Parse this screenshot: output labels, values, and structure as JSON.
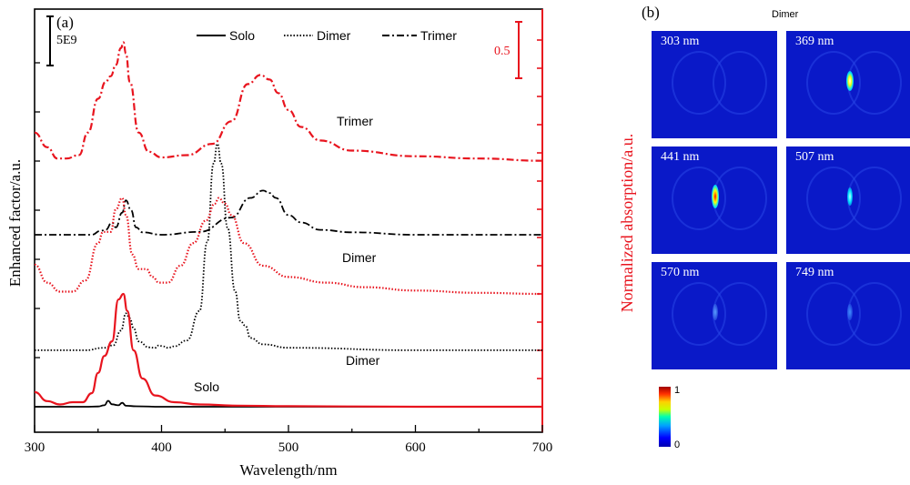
{
  "panel_a": {
    "label": "(a)",
    "xlabel": "Wavelength/nm",
    "ylabel_left": "Enhanced factor/a.u.",
    "ylabel_right": "Normalized absorption/a.u.",
    "xticks": [
      "300",
      "400",
      "500",
      "600",
      "700"
    ],
    "scalebar_left_label": "5E9",
    "scalebar_right_label": "0.5",
    "legend": [
      "Solo",
      "Dimer",
      "Trimer"
    ],
    "curve_labels": {
      "trimer": "Trimer",
      "dimer_upper": "Dimer",
      "dimer_lower": "Dimer",
      "solo": "Solo"
    }
  },
  "panel_b": {
    "label": "(b)",
    "title": "Dimer",
    "maps": [
      {
        "label": "303 nm"
      },
      {
        "label": "369 nm"
      },
      {
        "label": "441 nm"
      },
      {
        "label": "507 nm"
      },
      {
        "label": "570 nm"
      },
      {
        "label": "749 nm"
      }
    ],
    "colorbar": {
      "max_label": "1",
      "min_label": "0"
    }
  },
  "colors": {
    "absorption": "#e8141e",
    "enhancement": "#000000",
    "map_background": "#0a19c8"
  },
  "chart_data": {
    "type": "line",
    "xlim": [
      300,
      700
    ],
    "grid": false,
    "legend_position": "top-center",
    "series": [
      {
        "name": "Solo",
        "axis": "left",
        "color": "#000000",
        "style": "solid",
        "baseline": 0.0,
        "x": [
          300,
          340,
          350,
          355,
          358,
          361,
          366,
          369,
          372,
          380,
          400,
          500,
          600,
          700
        ],
        "y": [
          0,
          0,
          0.005,
          0.03,
          0.12,
          0.05,
          0.03,
          0.08,
          0.02,
          0.01,
          0,
          0,
          0,
          0
        ]
      },
      {
        "name": "Dimer",
        "axis": "left",
        "color": "#000000",
        "style": "dotted",
        "baseline": 1.15,
        "x": [
          300,
          340,
          355,
          362,
          368,
          372,
          375,
          378,
          382,
          390,
          395,
          398,
          401,
          405,
          410,
          420,
          430,
          436,
          441,
          444,
          447,
          452,
          458,
          462,
          466,
          470,
          480,
          500,
          600,
          700
        ],
        "y": [
          0,
          0,
          0.05,
          0.1,
          0.4,
          0.75,
          0.65,
          0.45,
          0.18,
          0.06,
          0.05,
          0.1,
          0.08,
          0.05,
          0.08,
          0.2,
          0.8,
          2.2,
          3.8,
          4.2,
          3.8,
          2.5,
          1.2,
          0.6,
          0.5,
          0.25,
          0.12,
          0.05,
          0,
          0
        ]
      },
      {
        "name": "Trimer",
        "axis": "left",
        "color": "#000000",
        "style": "dashdot",
        "baseline": 3.5,
        "x": [
          300,
          345,
          352,
          356,
          361,
          364,
          369,
          372,
          376,
          380,
          385,
          400,
          430,
          455,
          470,
          480,
          485,
          490,
          500,
          510,
          525,
          550,
          600,
          700
        ],
        "y": [
          0,
          0,
          0.08,
          0.1,
          0.25,
          0.15,
          0.45,
          0.7,
          0.5,
          0.15,
          0.05,
          0,
          0.06,
          0.35,
          0.75,
          0.9,
          0.85,
          0.75,
          0.4,
          0.25,
          0.1,
          0.05,
          0,
          0
        ]
      },
      {
        "name": "Solo absorption",
        "axis": "right",
        "color": "#e8141e",
        "style": "solid",
        "baseline": 0.0,
        "x": [
          300,
          310,
          320,
          330,
          338,
          345,
          350,
          355,
          361,
          366,
          370,
          373,
          378,
          385,
          395,
          410,
          430,
          460,
          500,
          600,
          700
        ],
        "y": [
          0.13,
          0.05,
          0.02,
          0.04,
          0.04,
          0.12,
          0.3,
          0.45,
          0.58,
          0.95,
          1.0,
          0.85,
          0.5,
          0.25,
          0.1,
          0.04,
          0.02,
          0.01,
          0.005,
          0,
          0
        ]
      },
      {
        "name": "Dimer absorption",
        "axis": "right",
        "color": "#e8141e",
        "style": "dotted",
        "baseline": 1.0,
        "x": [
          300,
          310,
          320,
          330,
          340,
          350,
          354,
          360,
          364,
          369,
          372,
          377,
          382,
          388,
          393,
          398,
          405,
          415,
          425,
          435,
          442,
          445,
          450,
          455,
          465,
          480,
          500,
          530,
          560,
          600,
          650,
          700
        ],
        "y": [
          0.26,
          0.1,
          0.02,
          0.02,
          0.12,
          0.45,
          0.55,
          0.55,
          0.75,
          0.85,
          0.7,
          0.35,
          0.22,
          0.22,
          0.15,
          0.1,
          0.1,
          0.25,
          0.45,
          0.65,
          0.8,
          0.85,
          0.8,
          0.7,
          0.45,
          0.25,
          0.15,
          0.1,
          0.06,
          0.03,
          0.01,
          0.0
        ]
      },
      {
        "name": "Trimer absorption",
        "axis": "right",
        "color": "#e8141e",
        "style": "dashdot",
        "baseline": 2.18,
        "x": [
          300,
          310,
          318,
          325,
          335,
          342,
          350,
          356,
          360,
          364,
          368,
          370,
          372,
          375,
          382,
          390,
          400,
          420,
          440,
          455,
          468,
          478,
          485,
          492,
          500,
          510,
          525,
          550,
          600,
          650,
          700
        ],
        "y": [
          0.25,
          0.12,
          0.02,
          0.02,
          0.05,
          0.25,
          0.55,
          0.7,
          0.75,
          0.85,
          1.0,
          1.05,
          0.95,
          0.7,
          0.25,
          0.08,
          0.03,
          0.05,
          0.15,
          0.35,
          0.68,
          0.76,
          0.72,
          0.6,
          0.45,
          0.3,
          0.18,
          0.09,
          0.04,
          0.02,
          0.0
        ]
      }
    ]
  }
}
